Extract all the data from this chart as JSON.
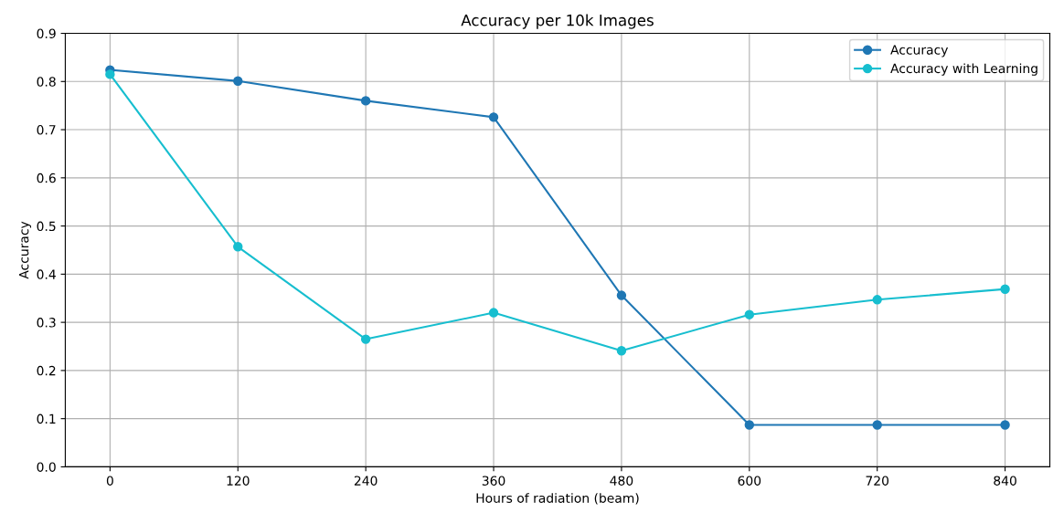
{
  "chart_data": {
    "type": "line",
    "title": "Accuracy per 10k Images",
    "xlabel": "Hours of radiation (beam)",
    "ylabel": "Accuracy",
    "x": [
      0,
      120,
      240,
      360,
      480,
      600,
      720,
      840
    ],
    "series": [
      {
        "name": "Accuracy",
        "color": "#1f77b4",
        "values": [
          0.824,
          0.801,
          0.76,
          0.726,
          0.356,
          0.087,
          0.087,
          0.087
        ]
      },
      {
        "name": "Accuracy with Learning",
        "color": "#17becf",
        "values": [
          0.815,
          0.457,
          0.265,
          0.32,
          0.241,
          0.316,
          0.347,
          0.369
        ]
      }
    ],
    "xlim": [
      -42,
      882
    ],
    "xticks": [
      0,
      120,
      240,
      360,
      480,
      600,
      720,
      840
    ],
    "ylim": [
      0,
      0.9
    ],
    "yticks": [
      {
        "value": 0,
        "label": "0.0"
      },
      0.1,
      0.2,
      0.3,
      0.4,
      0.5,
      0.6,
      0.7,
      0.8,
      0.9
    ],
    "grid": true,
    "legend": "top right",
    "marker": "circle",
    "line_style": "solid"
  }
}
